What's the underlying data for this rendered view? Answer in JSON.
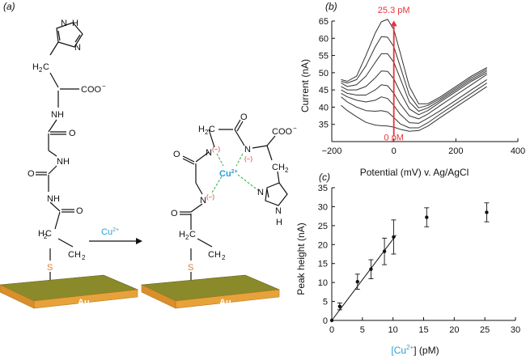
{
  "colors": {
    "red_annotation": "#e8333c",
    "cu_blue": "#2a9fd6",
    "sulfur_orange": "#e07b2a",
    "gold_top": "#8a8a2a",
    "gold_side": "#e8a23a",
    "dashed_green": "#3bb34a",
    "minus_red": "#c0392b",
    "curve_gray": "#333333"
  },
  "panel_a": {
    "label": "(a)",
    "reaction_reagent_base": "Cu",
    "reaction_reagent_charge": "2+",
    "substrate_label_left": "Au",
    "substrate_label_right": "Au",
    "left_molecule": {
      "imidazole_NH": "N",
      "imidazole_H": "H",
      "imidazole_N": "N",
      "ch2_top": "H",
      "ch2_top_sub": "2",
      "ch2_top_c": "C",
      "coo": "COO",
      "coo_charge": "−",
      "nh1": "NH",
      "o1": "O",
      "nh2": "NH",
      "o2": "O",
      "nh3": "NH",
      "o3": "O",
      "ch2_a": "C",
      "ch2_a_h": "H",
      "ch2_a_sub": "2",
      "ch2_b": "CH",
      "ch2_b_sub": "2",
      "sulfur": "S"
    },
    "right_molecule": {
      "cu": "Cu",
      "cu_charge": "2+",
      "n1": "N",
      "n1_charge": "(−)",
      "n2": "N",
      "n2_charge": "(−)",
      "n3": "N",
      "n3_charge": "(−)",
      "o1": "O",
      "o2": "O",
      "o3": "O",
      "h2c": "H",
      "h2c_sub": "2",
      "h2c_c": "C",
      "coo": "COO",
      "coo_charge": "−",
      "ch2": "CH",
      "ch2_sub": "2",
      "imidazole_N": "N",
      "imidazole_NH": "N",
      "imidazole_H": "H",
      "h2c_bottom": "H",
      "h2c_bottom_sub": "2",
      "h2c_bottom_c": "C",
      "ch2_bottom": "CH",
      "ch2_bottom_sub": "2",
      "sulfur": "S"
    }
  },
  "chart_data": [
    {
      "panel": "(b)",
      "type": "line",
      "xlabel": "Potential (mV) v. Ag/AgCl",
      "ylabel": "Current (nA)",
      "xlim": [
        -200,
        400
      ],
      "ylim": [
        30,
        65
      ],
      "xticks": [
        -200,
        0,
        200,
        400
      ],
      "yticks": [
        35,
        40,
        45,
        50,
        55,
        60,
        65
      ],
      "annotation_top": "25.3 pM",
      "annotation_bottom": "0 pM",
      "x": [
        -170,
        -150,
        -120,
        -90,
        -60,
        -40,
        -20,
        0,
        20,
        50,
        80,
        110,
        150,
        200,
        250,
        300
      ],
      "series": [
        {
          "values": [
            40.5,
            39.0,
            37.2,
            35.6,
            34.8,
            34.6,
            34.5,
            34.2,
            33.6,
            33.0,
            33.2,
            34.5,
            37.0,
            40.0,
            43.0,
            46.0
          ]
        },
        {
          "values": [
            43.0,
            41.5,
            40.0,
            39.0,
            38.8,
            39.0,
            38.6,
            37.0,
            35.2,
            34.0,
            34.0,
            35.5,
            38.0,
            41.0,
            44.0,
            47.0
          ]
        },
        {
          "values": [
            44.0,
            43.0,
            42.0,
            41.5,
            42.0,
            43.0,
            42.5,
            40.5,
            38.0,
            35.5,
            35.3,
            36.8,
            39.0,
            42.0,
            45.0,
            48.0
          ]
        },
        {
          "values": [
            45.0,
            44.0,
            43.5,
            43.5,
            45.0,
            46.5,
            46.2,
            44.0,
            41.0,
            37.5,
            36.6,
            38.0,
            40.5,
            43.5,
            46.5,
            49.5
          ]
        },
        {
          "values": [
            46.0,
            45.0,
            45.0,
            46.0,
            48.5,
            50.5,
            50.4,
            48.2,
            44.5,
            39.5,
            37.8,
            39.0,
            41.5,
            44.5,
            47.5,
            50.0
          ]
        },
        {
          "values": [
            47.0,
            46.0,
            46.5,
            49.0,
            53.0,
            55.5,
            55.5,
            53.0,
            48.5,
            41.5,
            38.8,
            39.8,
            42.0,
            45.0,
            48.0,
            50.5
          ]
        },
        {
          "values": [
            47.5,
            47.0,
            48.0,
            52.0,
            57.5,
            60.5,
            60.3,
            57.5,
            52.0,
            43.5,
            39.8,
            40.5,
            42.5,
            45.5,
            48.5,
            51.0
          ]
        },
        {
          "values": [
            48.0,
            47.5,
            49.0,
            55.0,
            61.5,
            64.8,
            65.5,
            62.5,
            56.0,
            46.0,
            41.0,
            41.0,
            43.0,
            46.0,
            49.0,
            51.5
          ]
        }
      ]
    },
    {
      "panel": "(c)",
      "type": "scatter",
      "xlabel_prefix": "[Cu",
      "xlabel_sup": "2+",
      "xlabel_suffix": "] (pM)",
      "ylabel": "Peak height (nA)",
      "xlim": [
        0,
        30
      ],
      "ylim": [
        0,
        35
      ],
      "xticks": [
        0,
        5,
        10,
        15,
        20,
        25,
        30
      ],
      "yticks": [
        0,
        5,
        10,
        15,
        20,
        25,
        30,
        35
      ],
      "points": [
        {
          "x": 0,
          "y": 0,
          "err": 0
        },
        {
          "x": 1.3,
          "y": 3.7,
          "err": 0.9
        },
        {
          "x": 4.2,
          "y": 10.2,
          "err": 2.0
        },
        {
          "x": 6.4,
          "y": 13.5,
          "err": 2.5
        },
        {
          "x": 8.6,
          "y": 18.2,
          "err": 3.5
        },
        {
          "x": 10.1,
          "y": 22.0,
          "err": 4.5
        },
        {
          "x": 15.5,
          "y": 27.2,
          "err": 2.5
        },
        {
          "x": 25.3,
          "y": 28.5,
          "err": 2.5
        }
      ],
      "fit_line": {
        "x": [
          0,
          10.5
        ],
        "y": [
          0,
          22.5
        ]
      }
    }
  ]
}
